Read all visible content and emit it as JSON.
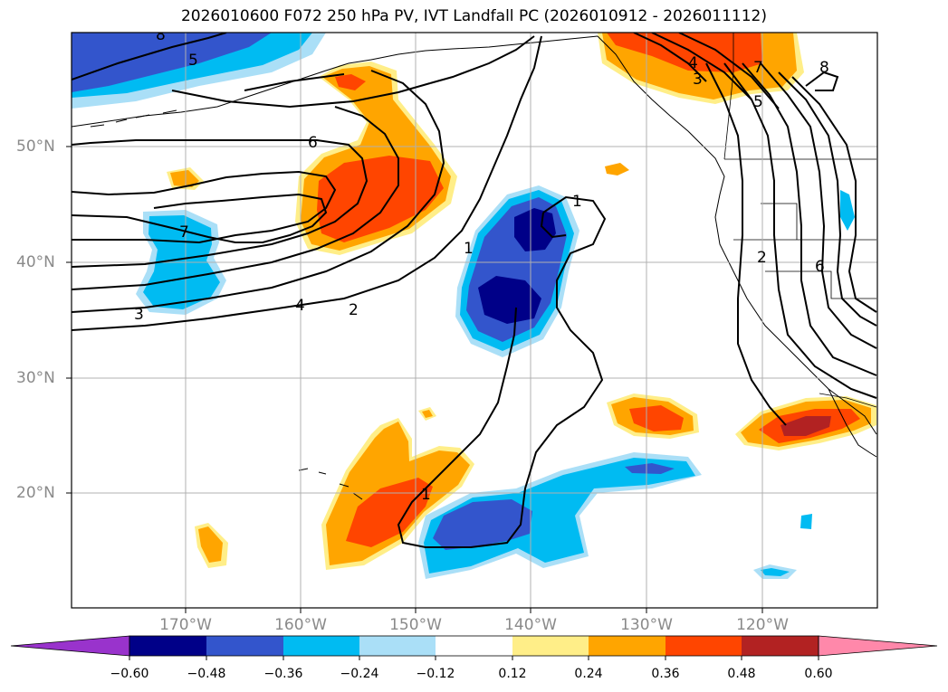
{
  "title": "2026010600 F072 250 hPa PV, IVT Landfall PC (2026010912 - 2026011112)",
  "lat_labels": [
    "50°N",
    "40°N",
    "30°N",
    "20°N"
  ],
  "lon_labels": [
    "170°W",
    "160°W",
    "150°W",
    "140°W",
    "130°W",
    "120°W"
  ],
  "contour_labels": [
    "8",
    "5",
    "6",
    "7",
    "4",
    "3",
    "2",
    "1",
    "1",
    "1",
    "4",
    "3",
    "7",
    "8",
    "5",
    "2",
    "6"
  ],
  "colorbar": {
    "tick_labels": [
      "−0.60",
      "−0.48",
      "−0.36",
      "−0.24",
      "−0.12",
      "0.12",
      "0.24",
      "0.36",
      "0.48",
      "0.60"
    ],
    "colors": [
      "#9933cc",
      "#000088",
      "#3355cc",
      "#00bbf2",
      "#aadff7",
      "#ffffff",
      "#ffee88",
      "#ffa500",
      "#ff4500",
      "#b22222",
      "#ff88aa"
    ]
  }
}
